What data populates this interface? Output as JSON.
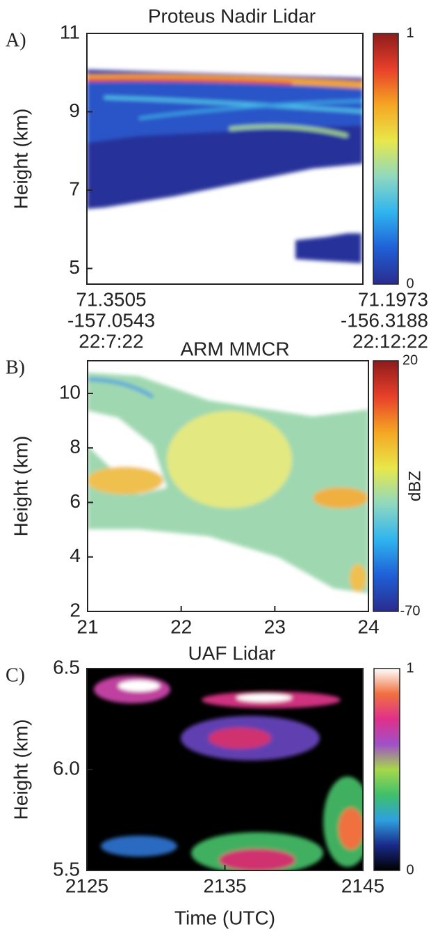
{
  "chart_data": [
    {
      "type": "heatmap",
      "panel_label": "A)",
      "title": "Proteus Nadir Lidar",
      "y_label": "Height (km)",
      "ylim": [
        4.6,
        11
      ],
      "yticks": [
        5,
        7,
        9,
        11
      ],
      "x_end_labels": [
        [
          "71.3505",
          "-157.0543",
          "22:7:22"
        ],
        [
          "71.1973",
          "-156.3188",
          "22:12:22"
        ]
      ],
      "clim": [
        0,
        1
      ],
      "cticks": [
        0,
        1
      ],
      "colors": [
        "#2a2c8e",
        "#1f5fd6",
        "#2fb4ef",
        "#8fd8c0",
        "#e8e84a",
        "#f5a623",
        "#e8402a",
        "#8e1b1b"
      ]
    },
    {
      "type": "heatmap",
      "panel_label": "B)",
      "title": "ARM MMCR",
      "y_label": "Height (km)",
      "ylim": [
        2,
        11.2
      ],
      "yticks": [
        2,
        4,
        6,
        8,
        10
      ],
      "xlim": [
        21,
        24
      ],
      "xticks": [
        21,
        22,
        23,
        24
      ],
      "clim": [
        -70,
        20
      ],
      "cticks": [
        -70,
        20
      ],
      "colorbar_label": "dBZ",
      "colors": [
        "#2a2c8e",
        "#1f5fd6",
        "#2fb4ef",
        "#8fd8c0",
        "#e8e84a",
        "#f5a623",
        "#e8402a",
        "#8e1b1b"
      ]
    },
    {
      "type": "heatmap",
      "panel_label": "C)",
      "title": "UAF Lidar",
      "y_label": "Height (km)",
      "x_label": "Time (UTC)",
      "ylim": [
        5.5,
        6.5
      ],
      "yticks": [
        5.5,
        {
          "value": 6,
          "label": "6.0"
        },
        6.5
      ],
      "xlim": [
        2125,
        2145
      ],
      "xticks": [
        2125,
        2135,
        2145
      ],
      "clim": [
        0,
        1
      ],
      "cticks": [
        0,
        1
      ],
      "colors": [
        "#000000",
        "#1a2a8a",
        "#2ea0e0",
        "#3fc06a",
        "#a6d84a",
        "#a050c8",
        "#e0308a",
        "#f07040",
        "#ffffff"
      ]
    }
  ]
}
